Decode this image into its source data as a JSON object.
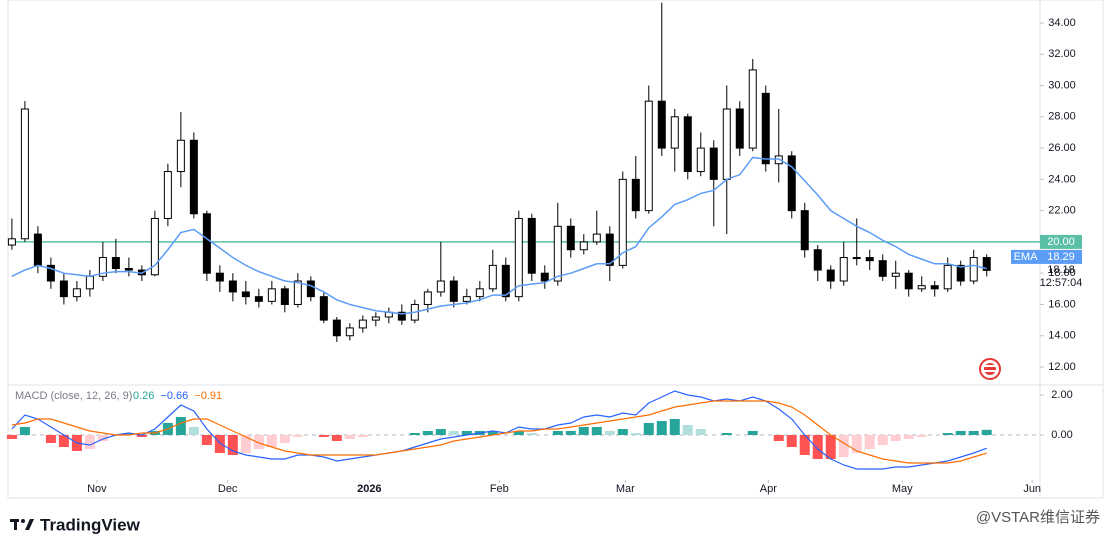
{
  "chart_data": [
    {
      "type": "candlestick",
      "up_color": "#ffffff",
      "down_color": "#000000",
      "outline": "#000000",
      "xlim": [
        -0.3,
        79.1
      ],
      "ylim": [
        10.85,
        35.47
      ],
      "yticks": [
        {
          "value": 12,
          "label": "12.00"
        },
        {
          "value": 14,
          "label": "14.00"
        },
        {
          "value": 16,
          "label": "16.00"
        },
        {
          "value": 18,
          "label": "18.00"
        },
        {
          "value": 20,
          "label": "20.00"
        },
        {
          "value": 22,
          "label": "22.00"
        },
        {
          "value": 24,
          "label": "24.00"
        },
        {
          "value": 26,
          "label": "26.00"
        },
        {
          "value": 28,
          "label": "28.00"
        },
        {
          "value": 30,
          "label": "30.00"
        },
        {
          "value": 32,
          "label": "32.00"
        },
        {
          "value": 34,
          "label": "34.00"
        }
      ],
      "hline": {
        "value": 20,
        "label": "20.00",
        "color": "#5bbfa8"
      },
      "candles": [
        [
          19.8,
          21.5,
          19.5,
          20.2
        ],
        [
          20.2,
          29.0,
          20.0,
          28.5
        ],
        [
          20.5,
          21.0,
          18.0,
          18.5
        ],
        [
          18.5,
          19.0,
          17.0,
          17.5
        ],
        [
          17.5,
          18.0,
          16.0,
          16.5
        ],
        [
          16.5,
          17.5,
          16.2,
          17.0
        ],
        [
          17.0,
          18.2,
          16.5,
          17.8
        ],
        [
          17.8,
          20.0,
          17.5,
          19.0
        ],
        [
          19.0,
          20.2,
          18.0,
          18.3
        ],
        [
          18.3,
          19.0,
          17.8,
          18.2
        ],
        [
          18.2,
          18.5,
          17.5,
          17.9
        ],
        [
          17.9,
          22.0,
          17.8,
          21.5
        ],
        [
          21.5,
          25.0,
          21.0,
          24.5
        ],
        [
          24.5,
          28.3,
          23.5,
          26.5
        ],
        [
          26.5,
          27.0,
          21.5,
          21.8
        ],
        [
          21.8,
          22.0,
          17.5,
          18.0
        ],
        [
          18.0,
          18.5,
          16.8,
          17.5
        ],
        [
          17.5,
          18.0,
          16.2,
          16.8
        ],
        [
          16.8,
          17.5,
          16.0,
          16.5
        ],
        [
          16.5,
          17.0,
          15.8,
          16.2
        ],
        [
          16.2,
          17.5,
          16.0,
          17.0
        ],
        [
          17.0,
          17.2,
          15.5,
          16.0
        ],
        [
          16.0,
          18.0,
          15.8,
          17.5
        ],
        [
          17.5,
          17.8,
          16.2,
          16.5
        ],
        [
          16.5,
          16.8,
          14.8,
          15.0
        ],
        [
          15.0,
          15.2,
          13.6,
          14.0
        ],
        [
          14.0,
          14.8,
          13.7,
          14.5
        ],
        [
          14.5,
          15.3,
          14.2,
          15.0
        ],
        [
          15.0,
          15.5,
          14.6,
          15.2
        ],
        [
          15.2,
          15.8,
          14.8,
          15.5
        ],
        [
          15.5,
          16.0,
          14.7,
          15.0
        ],
        [
          15.0,
          16.3,
          14.8,
          16.0
        ],
        [
          16.0,
          17.0,
          15.5,
          16.8
        ],
        [
          16.8,
          20.0,
          16.5,
          17.5
        ],
        [
          17.5,
          17.8,
          15.8,
          16.2
        ],
        [
          16.2,
          17.0,
          16.0,
          16.5
        ],
        [
          16.5,
          17.5,
          16.2,
          17.0
        ],
        [
          17.0,
          19.5,
          16.8,
          18.5
        ],
        [
          18.5,
          19.0,
          16.2,
          16.5
        ],
        [
          16.5,
          22.0,
          16.2,
          21.5
        ],
        [
          21.5,
          21.8,
          17.5,
          18.0
        ],
        [
          18.0,
          18.5,
          17.0,
          17.5
        ],
        [
          17.5,
          22.5,
          17.2,
          21.0
        ],
        [
          21.0,
          21.5,
          19.0,
          19.5
        ],
        [
          19.5,
          20.5,
          19.2,
          20.0
        ],
        [
          20.0,
          22.0,
          19.8,
          20.5
        ],
        [
          20.5,
          21.0,
          17.5,
          18.5
        ],
        [
          18.5,
          24.5,
          18.3,
          24.0
        ],
        [
          24.0,
          25.5,
          21.5,
          22.0
        ],
        [
          22.0,
          30.0,
          21.8,
          29.0
        ],
        [
          29.0,
          35.3,
          25.5,
          26.0
        ],
        [
          26.0,
          28.5,
          24.5,
          28.0
        ],
        [
          28.0,
          28.2,
          24.0,
          24.5
        ],
        [
          24.5,
          27.0,
          24.2,
          26.0
        ],
        [
          26.0,
          26.5,
          21.0,
          24.0
        ],
        [
          24.0,
          30.0,
          20.5,
          28.5
        ],
        [
          28.5,
          29.0,
          25.5,
          26.0
        ],
        [
          26.0,
          31.7,
          25.8,
          31.0
        ],
        [
          29.5,
          30.0,
          24.5,
          25.0
        ],
        [
          25.0,
          28.5,
          23.8,
          25.5
        ],
        [
          25.5,
          25.8,
          21.5,
          22.0
        ],
        [
          22.0,
          22.5,
          19.0,
          19.5
        ],
        [
          19.5,
          19.8,
          17.5,
          18.2
        ],
        [
          18.2,
          18.5,
          17.0,
          17.5
        ],
        [
          17.5,
          20.0,
          17.2,
          19.0
        ],
        [
          19.0,
          21.5,
          18.5,
          19.0
        ],
        [
          19.0,
          19.5,
          18.2,
          18.8
        ],
        [
          18.8,
          19.2,
          17.5,
          17.8
        ],
        [
          17.8,
          18.8,
          17.0,
          18.0
        ],
        [
          18.0,
          18.2,
          16.5,
          17.0
        ],
        [
          17.0,
          17.8,
          16.8,
          17.2
        ],
        [
          17.2,
          17.5,
          16.5,
          17.0
        ],
        [
          17.0,
          19.0,
          16.8,
          18.5
        ],
        [
          18.5,
          18.8,
          17.2,
          17.5
        ],
        [
          17.5,
          19.5,
          17.3,
          19.0
        ],
        [
          19.0,
          19.2,
          17.8,
          18.18
        ]
      ],
      "last_label": "18.18",
      "countdown": "12:57:04",
      "ema": {
        "name": "EMA",
        "color": "#5b9cf6",
        "last_label": "18.29",
        "values": [
          17.8,
          18.2,
          18.5,
          18.3,
          18.0,
          17.9,
          17.8,
          18.0,
          18.1,
          18.1,
          18.0,
          18.5,
          19.5,
          20.6,
          20.8,
          20.2,
          19.6,
          19.0,
          18.5,
          18.1,
          17.8,
          17.5,
          17.4,
          17.2,
          16.8,
          16.3,
          16.0,
          15.8,
          15.6,
          15.5,
          15.4,
          15.5,
          15.7,
          15.9,
          16.0,
          16.1,
          16.3,
          16.6,
          16.6,
          17.2,
          17.3,
          17.4,
          17.8,
          18.0,
          18.3,
          18.6,
          18.6,
          19.3,
          19.7,
          20.9,
          21.6,
          22.4,
          22.7,
          23.1,
          23.3,
          24.0,
          24.3,
          25.4,
          25.3,
          25.3,
          24.8,
          23.9,
          23.0,
          22.0,
          21.5,
          21.0,
          20.6,
          20.1,
          19.7,
          19.2,
          18.9,
          18.6,
          18.6,
          18.4,
          18.5,
          18.29
        ]
      }
    },
    {
      "type": "macd",
      "title": "MACD (close, 12, 26, 9)",
      "xlim": [
        -0.3,
        79.1
      ],
      "xticks": [
        {
          "value": 6.54,
          "label": "Nov"
        },
        {
          "value": 16.6,
          "label": "Dec"
        },
        {
          "value": 27.5,
          "label": "2026"
        },
        {
          "value": 37.5,
          "label": "Feb"
        },
        {
          "value": 47.2,
          "label": "Mar"
        },
        {
          "value": 58.2,
          "label": "Apr"
        },
        {
          "value": 68.5,
          "label": "May"
        },
        {
          "value": 78.5,
          "label": "Jun"
        }
      ],
      "ylim": [
        -2.25,
        2.5
      ],
      "yticks": [
        {
          "value": 0,
          "label": "0.00"
        },
        {
          "value": 2,
          "label": "2.00"
        }
      ],
      "hist_colors": [
        "#26a69a",
        "#b2dfdb",
        "#ff5252",
        "#ffcdd2"
      ],
      "series": [
        {
          "type": "histogram",
          "color": "#26a69a",
          "value_label": "0.26",
          "values": [
            -0.2,
            0.4,
            0.0,
            -0.4,
            -0.6,
            -0.8,
            -0.7,
            -0.3,
            0.0,
            0.1,
            -0.1,
            0.2,
            0.6,
            0.9,
            0.4,
            -0.5,
            -0.9,
            -1.0,
            -0.9,
            -0.7,
            -0.6,
            -0.4,
            -0.1,
            0.0,
            -0.1,
            -0.3,
            -0.2,
            -0.1,
            0.0,
            0.0,
            0.0,
            0.1,
            0.2,
            0.3,
            0.2,
            0.2,
            0.2,
            0.2,
            0.0,
            0.2,
            0.1,
            0.0,
            0.2,
            0.2,
            0.4,
            0.4,
            0.2,
            0.3,
            0.1,
            0.6,
            0.7,
            0.8,
            0.5,
            0.3,
            0.0,
            0.1,
            0.0,
            0.2,
            0.0,
            -0.3,
            -0.6,
            -1.0,
            -1.2,
            -1.2,
            -1.1,
            -0.9,
            -0.7,
            -0.5,
            -0.3,
            -0.2,
            -0.1,
            0.0,
            0.1,
            0.2,
            0.2,
            0.26
          ]
        },
        {
          "type": "line",
          "color": "#2962ff",
          "value_label": "−0.66",
          "values": [
            0.3,
            1.0,
            0.8,
            0.4,
            0.0,
            -0.4,
            -0.5,
            -0.2,
            0.0,
            0.1,
            0.0,
            0.3,
            0.9,
            1.5,
            1.2,
            0.3,
            -0.4,
            -0.8,
            -1.0,
            -1.1,
            -1.2,
            -1.2,
            -1.0,
            -1.0,
            -1.1,
            -1.3,
            -1.2,
            -1.1,
            -1.0,
            -0.9,
            -0.8,
            -0.6,
            -0.4,
            -0.2,
            -0.1,
            0.0,
            0.1,
            0.2,
            0.1,
            0.4,
            0.3,
            0.3,
            0.5,
            0.6,
            0.9,
            1.0,
            0.9,
            1.1,
            1.0,
            1.6,
            1.9,
            2.2,
            2.0,
            1.9,
            1.7,
            1.8,
            1.7,
            1.9,
            1.7,
            1.3,
            0.8,
            0.0,
            -0.7,
            -1.2,
            -1.5,
            -1.7,
            -1.7,
            -1.7,
            -1.6,
            -1.6,
            -1.5,
            -1.4,
            -1.3,
            -1.1,
            -0.9,
            -0.66
          ]
        },
        {
          "type": "line",
          "color": "#ff6d00",
          "value_label": "−0.91",
          "values": [
            0.5,
            0.6,
            0.8,
            0.8,
            0.6,
            0.4,
            0.2,
            0.1,
            0.0,
            0.0,
            0.1,
            0.1,
            0.3,
            0.6,
            0.8,
            0.8,
            0.5,
            0.2,
            -0.1,
            -0.4,
            -0.6,
            -0.8,
            -0.9,
            -1.0,
            -1.0,
            -1.0,
            -1.0,
            -1.0,
            -1.0,
            -0.9,
            -0.8,
            -0.7,
            -0.6,
            -0.5,
            -0.3,
            -0.2,
            -0.1,
            0.0,
            0.1,
            0.2,
            0.2,
            0.3,
            0.3,
            0.4,
            0.5,
            0.6,
            0.7,
            0.8,
            0.9,
            1.0,
            1.2,
            1.4,
            1.5,
            1.6,
            1.7,
            1.7,
            1.7,
            1.7,
            1.7,
            1.6,
            1.4,
            1.0,
            0.5,
            0.0,
            -0.4,
            -0.8,
            -1.0,
            -1.2,
            -1.3,
            -1.4,
            -1.4,
            -1.4,
            -1.4,
            -1.3,
            -1.1,
            -0.91
          ]
        }
      ]
    }
  ],
  "footer": {
    "logo": "TradingView",
    "watermark": "@VSTAR维信证券"
  }
}
